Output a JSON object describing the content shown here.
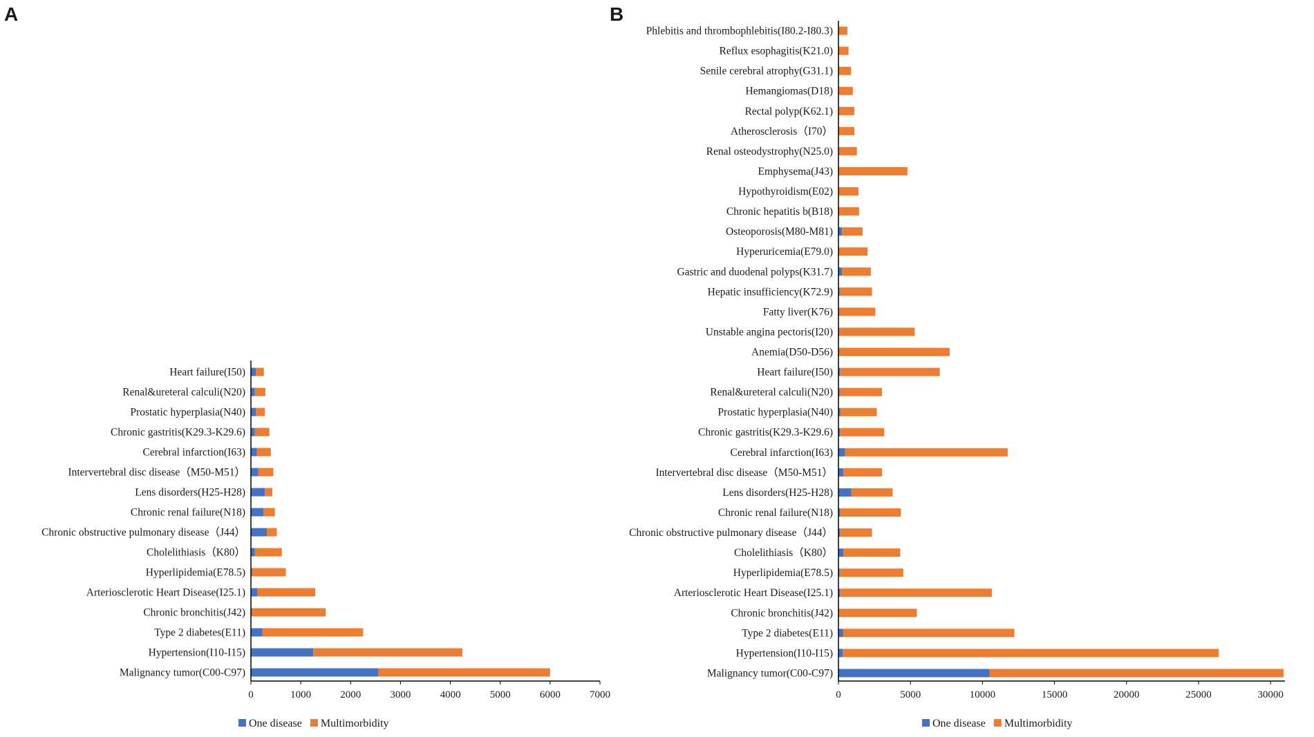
{
  "colors": {
    "one_disease": "#4472C4",
    "multimorbidity": "#ED7D31",
    "axis": "#000000"
  },
  "chart_data": [
    {
      "panel": "A",
      "type": "bar",
      "orientation": "horizontal",
      "stacked": true,
      "categories": [
        "Heart failure(I50)",
        "Renal&ureteral calculi(N20)",
        "Prostatic hyperplasia(N40)",
        "Chronic gastritis(K29.3-K29.6)",
        "Cerebral infarction(I63)",
        "Intervertebral disc disease（M50-M51）",
        "Lens disorders(H25-H28)",
        "Chronic renal failure(N18)",
        "Chronic obstructive pulmonary disease（J44）",
        "Cholelithiasis（K80）",
        "Hyperlipidemia(E78.5)",
        "Arteriosclerotic Heart Disease(I25.1)",
        "Chronic bronchitis(J42)",
        "Type 2 diabetes(E11)",
        "Hypertension(I10-I15)",
        "Malignancy tumor(C00-C97)"
      ],
      "series": [
        {
          "name": "One disease",
          "values": [
            100,
            80,
            100,
            80,
            120,
            150,
            280,
            250,
            320,
            80,
            20,
            130,
            20,
            230,
            1250,
            2550
          ]
        },
        {
          "name": "Multimorbidity",
          "values": [
            160,
            210,
            180,
            290,
            280,
            300,
            150,
            230,
            200,
            540,
            680,
            1160,
            1480,
            2020,
            2990,
            3450
          ]
        }
      ],
      "xlim": [
        0,
        7000
      ],
      "xticks": [
        "0",
        "1000",
        "2000",
        "3000",
        "4000",
        "5000",
        "6000",
        "7000"
      ],
      "xlabel": "",
      "ylabel": "",
      "legend": [
        "One disease",
        "Multimorbidity"
      ],
      "legend_position": "bottom"
    },
    {
      "panel": "B",
      "type": "bar",
      "orientation": "horizontal",
      "stacked": true,
      "categories": [
        "Phlebitis and thrombophlebitis(I80.2-I80.3)",
        "Reflux esophagitis(K21.0)",
        "Senile cerebral atrophy(G31.1)",
        "Hemangiomas(D18)",
        "Rectal polyp(K62.1)",
        "Atherosclerosis（I70）",
        "Renal osteodystrophy(N25.0)",
        "Emphysema(J43)",
        "Hypothyroidism(E02)",
        "Chronic hepatitis b(B18)",
        "Osteoporosis(M80-M81)",
        "Hyperuricemia(E79.0)",
        "Gastric and duodenal polyps(K31.7)",
        "Hepatic insufficiency(K72.9)",
        "Fatty liver(K76)",
        "Unstable angina pectoris(I20)",
        "Anemia(D50-D56)",
        "Heart failure(I50)",
        "Renal&ureteral calculi(N20)",
        "Prostatic hyperplasia(N40)",
        "Chronic gastritis(K29.3-K29.6)",
        "Cerebral infarction(I63)",
        "Intervertebral disc disease（M50-M51）",
        "Lens disorders(H25-H28)",
        "Chronic renal failure(N18)",
        "Chronic obstructive pulmonary disease（J44）",
        "Cholelithiasis（K80）",
        "Hyperlipidemia(E78.5)",
        "Arteriosclerotic Heart Disease(I25.1)",
        "Chronic bronchitis(J42)",
        "Type 2 diabetes(E11)",
        "Hypertension(I10-I15)",
        "Malignancy tumor(C00-C97)"
      ],
      "series": [
        {
          "name": "One disease",
          "values": [
            20,
            20,
            20,
            30,
            30,
            30,
            40,
            40,
            30,
            50,
            250,
            40,
            250,
            80,
            60,
            60,
            60,
            100,
            80,
            120,
            100,
            450,
            350,
            900,
            130,
            100,
            350,
            80,
            100,
            60,
            330,
            300,
            10500
          ]
        },
        {
          "name": "Multimorbidity",
          "values": [
            600,
            680,
            850,
            970,
            1070,
            1080,
            1240,
            4750,
            1360,
            1380,
            1430,
            1980,
            2000,
            2250,
            2500,
            5240,
            7660,
            6930,
            2940,
            2540,
            3080,
            11300,
            2680,
            2860,
            4200,
            2230,
            3940,
            4420,
            10550,
            5380,
            11880,
            26100,
            20400
          ]
        }
      ],
      "xlim": [
        0,
        31000
      ],
      "xticks": [
        "0",
        "5000",
        "10000",
        "15000",
        "20000",
        "25000",
        "30000"
      ],
      "xlabel": "",
      "ylabel": "",
      "legend": [
        "One disease",
        "Multimorbidity"
      ],
      "legend_position": "bottom"
    }
  ]
}
